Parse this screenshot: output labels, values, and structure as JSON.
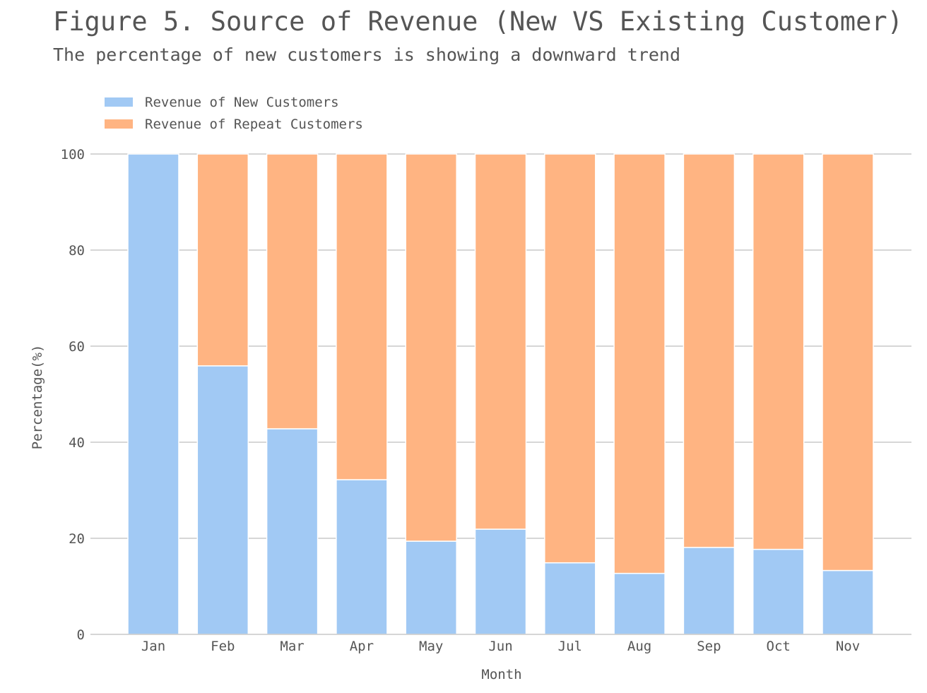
{
  "chart_data": {
    "type": "bar",
    "stacked": true,
    "title": "Figure 5. Source of Revenue (New VS Existing Customer)",
    "subtitle": "The percentage of new customers is showing a downward trend",
    "xlabel": "Month",
    "ylabel": "Percentage(%)",
    "ylim": [
      0,
      100
    ],
    "yticks": [
      0,
      20,
      40,
      60,
      80,
      100
    ],
    "grid": "horizontal",
    "legend_position": "top-left",
    "categories": [
      "Jan",
      "Feb",
      "Mar",
      "Apr",
      "May",
      "Jun",
      "Jul",
      "Aug",
      "Sep",
      "Oct",
      "Nov"
    ],
    "series": [
      {
        "name": "Revenue of New Customers",
        "color": "#a1c9f4",
        "values": [
          100,
          55.9,
          42.8,
          32.2,
          19.4,
          21.9,
          14.9,
          12.7,
          18.1,
          17.7,
          13.3
        ]
      },
      {
        "name": "Revenue of Repeat Customers",
        "color": "#ffb482",
        "values": [
          0,
          44.1,
          57.2,
          67.8,
          80.6,
          78.1,
          85.1,
          87.3,
          81.9,
          82.3,
          86.7
        ]
      }
    ]
  }
}
